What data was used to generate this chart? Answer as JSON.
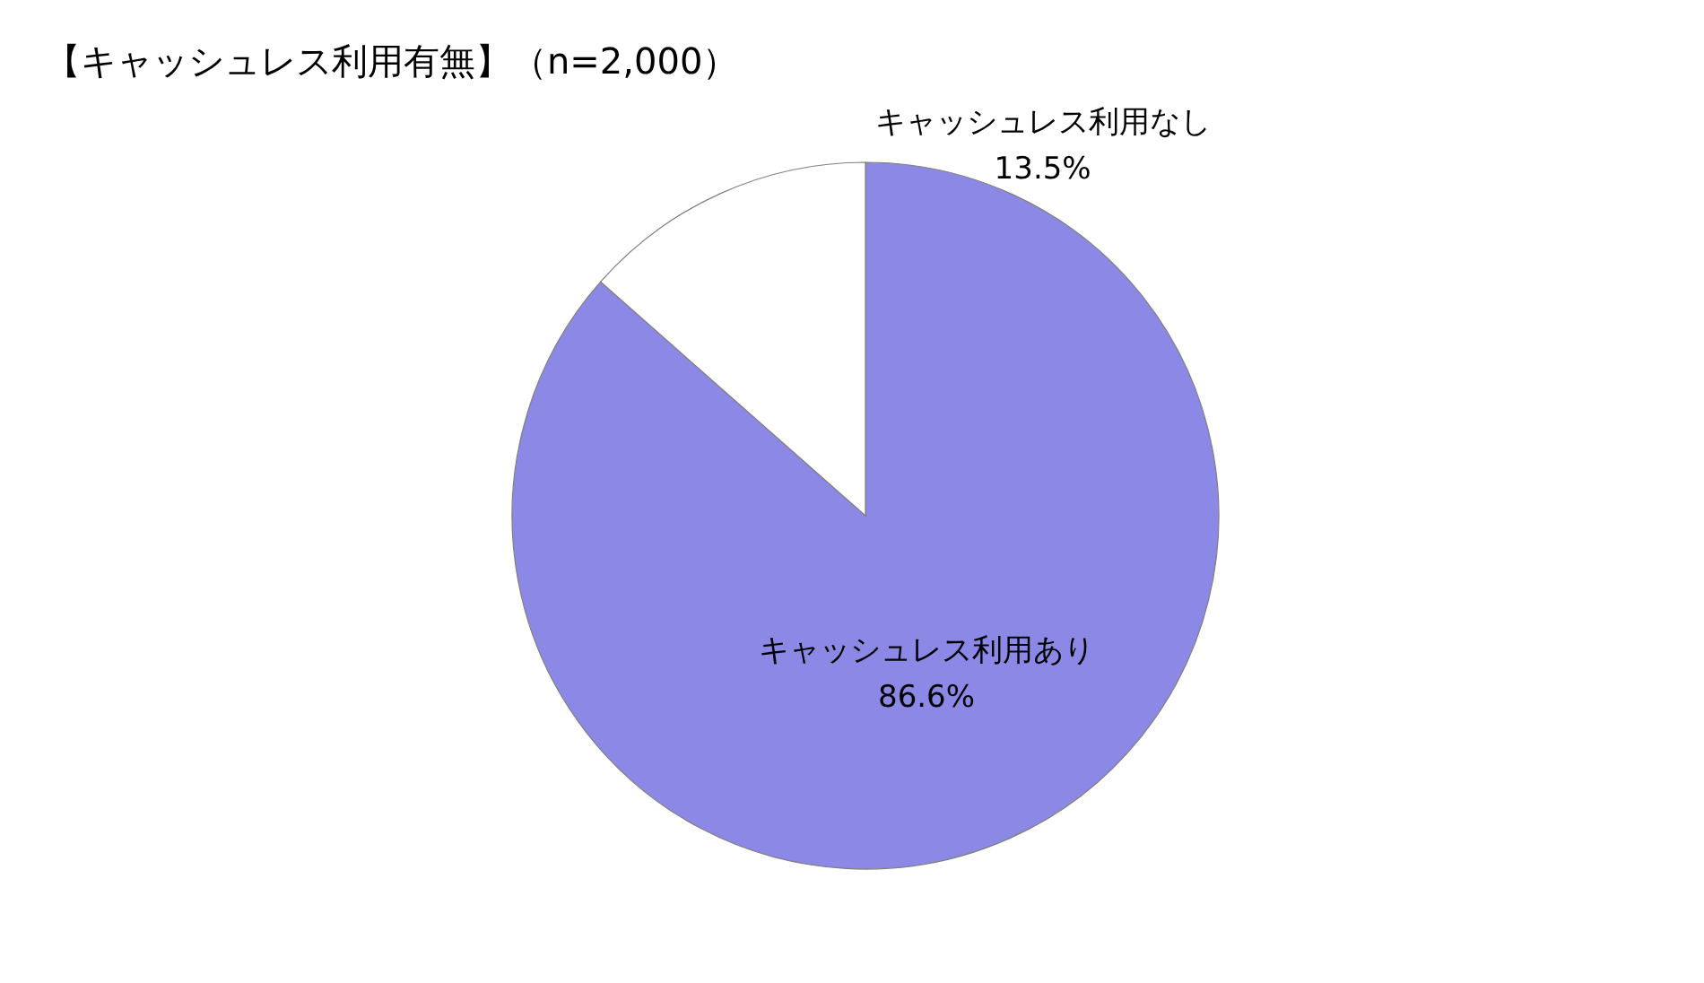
{
  "chart_data": {
    "type": "pie",
    "title": "【キャッシュレス利用有無】（n=2,000）",
    "categories": [
      "キャッシュレス利用あり",
      "キャッシュレス利用なし"
    ],
    "values": [
      86.6,
      13.5
    ],
    "colors": [
      "#8b88e6",
      "#ffffff"
    ],
    "value_labels": [
      "86.6%",
      "13.5%"
    ],
    "legend": false
  }
}
